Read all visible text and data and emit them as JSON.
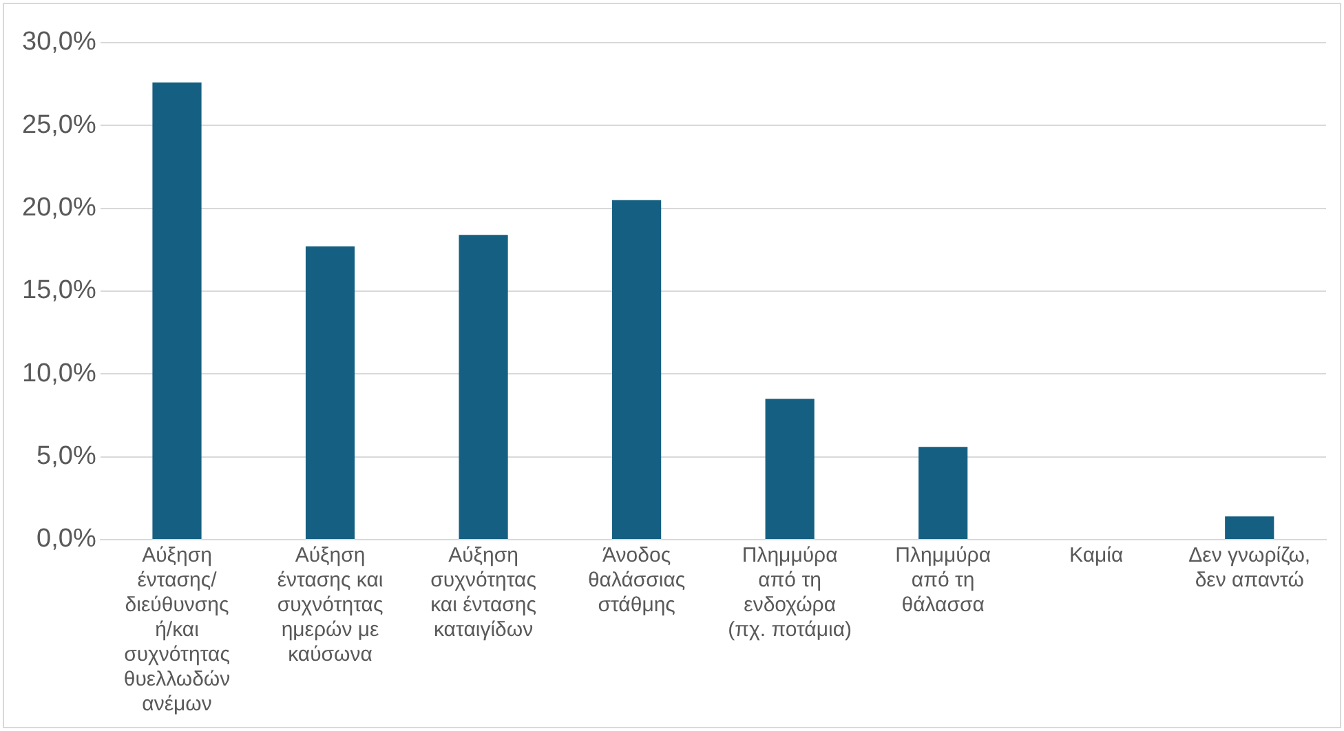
{
  "chart_data": {
    "type": "bar",
    "categories": [
      "Αύξηση έντασης/ διεύθυνσης ή/και συχνότητας θυελλωδών ανέμων",
      "Αύξηση έντασης και συχνότητας ημερών με καύσωνα",
      "Αύξηση συχνότητας και έντασης καταιγίδων",
      "Άνοδος θαλάσσιας στάθμης",
      "Πλημμύρα από τη ενδοχώρα (πχ. ποτάμια)",
      "Πλημμύρα από τη θάλασσα",
      "Καμία",
      "Δεν γνωρίζω, δεν απαντώ"
    ],
    "values": [
      27.6,
      17.7,
      18.4,
      20.5,
      8.5,
      5.6,
      0,
      1.4
    ],
    "color": "#156082",
    "ylim": [
      0,
      30
    ],
    "yticks": [
      {
        "value": 0,
        "label": "0,0%"
      },
      {
        "value": 5,
        "label": "5,0%"
      },
      {
        "value": 10,
        "label": "10,0%"
      },
      {
        "value": 15,
        "label": "15,0%"
      },
      {
        "value": 20,
        "label": "20,0%"
      },
      {
        "value": 25,
        "label": "25,0%"
      },
      {
        "value": 30,
        "label": "30,0%"
      }
    ],
    "grid": "y"
  }
}
